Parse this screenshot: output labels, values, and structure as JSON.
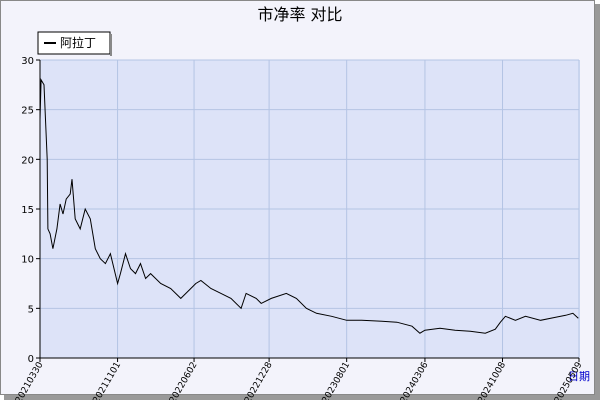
{
  "chart_data": {
    "type": "line",
    "title": "市净率  对比",
    "x_label": "日期",
    "x": [
      "20210330",
      "20210402",
      "20210410",
      "20210419",
      "20210421",
      "20210427",
      "20210505",
      "20210516",
      "20210525",
      "20210602",
      "20210611",
      "20210622",
      "20210627",
      "20210706",
      "20210720",
      "20210803",
      "20210817",
      "20210831",
      "20210914",
      "20210928",
      "20211012",
      "20211101",
      "20211109",
      "20211123",
      "20211207",
      "20211221",
      "20220104",
      "20220118",
      "20220201",
      "20220301",
      "20220329",
      "20220426",
      "20220524",
      "20220607",
      "20220621",
      "20220719",
      "20220816",
      "20220913",
      "20221011",
      "20221025",
      "20221122",
      "20221206",
      "20230103",
      "20230214",
      "20230314",
      "20230411",
      "20230509",
      "20230620",
      "20230801",
      "20230912",
      "20231107",
      "20231219",
      "20240130",
      "20240221",
      "20240306",
      "20240417",
      "20240529",
      "20240710",
      "20240821",
      "20240918",
      "20241002",
      "20241016",
      "20241113",
      "20241211",
      "20250122",
      "20250305",
      "20250402",
      "20250422",
      "20250507"
    ],
    "series": [
      {
        "name": "阿拉丁",
        "color": "#000000",
        "values": [
          24,
          28,
          27.5,
          20,
          13,
          12.5,
          11,
          13,
          15.5,
          14.5,
          16,
          16.5,
          18,
          14,
          13,
          15,
          14,
          11,
          10,
          9.5,
          10.5,
          7.5,
          8.5,
          10.5,
          9,
          8.5,
          9.5,
          8,
          8.5,
          7.5,
          7,
          6,
          7,
          7.5,
          7.8,
          7,
          6.5,
          6,
          5,
          6.5,
          6,
          5.5,
          6,
          6.5,
          6,
          5,
          4.5,
          4.2,
          3.8,
          3.8,
          3.7,
          3.6,
          3.2,
          2.5,
          2.8,
          3,
          2.8,
          2.7,
          2.5,
          2.9,
          3.6,
          4.2,
          3.8,
          4.2,
          3.8,
          4.1,
          4.3,
          4.5,
          4
        ]
      }
    ],
    "xlim": [
      "20210330",
      "20250509"
    ],
    "xticks": [
      "20210330",
      "20211101",
      "20220602",
      "20221228",
      "20230801",
      "20240306",
      "20241008",
      "20250509"
    ],
    "ylim": [
      0,
      30
    ],
    "yticks": [
      0,
      5,
      10,
      15,
      20,
      25,
      30
    ],
    "grid": true,
    "legend": "top-left"
  }
}
